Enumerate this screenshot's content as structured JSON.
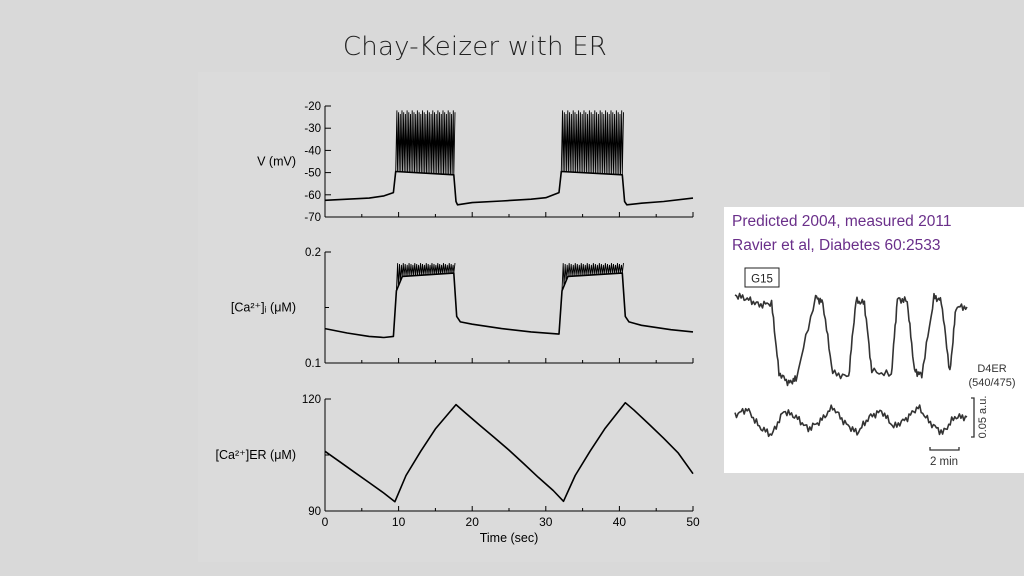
{
  "slide": {
    "title": "Chay-Keizer with ER"
  },
  "inset": {
    "caption_line1": "Predicted 2004, measured 2011",
    "caption_line2": "Ravier et al, Diabetes  60:2533",
    "label_glucose": "G15",
    "label_d4er_line1": "D4ER",
    "label_d4er_line2": "(540/475)",
    "scale_y_label": "0.05 a.u.",
    "scale_x_label": "2 min"
  },
  "chart_data": [
    {
      "type": "line",
      "id": "voltage",
      "ylabel": "V (mV)",
      "ylim": [
        -70,
        -20
      ],
      "yticks": [
        -20,
        -30,
        -40,
        -50,
        -60,
        -70
      ],
      "xlim": [
        0,
        50
      ],
      "series": [
        {
          "name": "V",
          "x": [
            0,
            3,
            6,
            8,
            9.3,
            9.6,
            17.5,
            17.8,
            18,
            20,
            24,
            28,
            30,
            31.8,
            32.1,
            40.4,
            40.7,
            41,
            43,
            46,
            50
          ],
          "y": [
            -62.5,
            -62,
            -61.5,
            -60.5,
            -59,
            -49.5,
            -51,
            -63,
            -64.5,
            -63.5,
            -62.8,
            -62,
            -61.3,
            -59,
            -49.5,
            -51,
            -63,
            -64.5,
            -63.8,
            -63,
            -61.5
          ],
          "burst_intervals": [
            [
              9.6,
              17.5
            ],
            [
              32.1,
              40.4
            ]
          ],
          "spike_peak": -22
        }
      ]
    },
    {
      "type": "line",
      "id": "calcium-cytosol",
      "ylabel": "[Ca²⁺]ᵢ (μM)",
      "ylim": [
        0.1,
        0.2
      ],
      "yticks": [
        0.2,
        0.1
      ],
      "xlim": [
        0,
        50
      ],
      "series": [
        {
          "name": "Ca_i",
          "x": [
            0,
            3,
            6,
            8,
            9.3,
            9.7,
            10.5,
            17.5,
            17.9,
            18.4,
            20,
            24,
            28,
            31.8,
            32.2,
            33,
            40.4,
            40.8,
            41.3,
            43,
            47,
            50
          ],
          "y": [
            0.131,
            0.127,
            0.124,
            0.123,
            0.124,
            0.165,
            0.178,
            0.181,
            0.142,
            0.137,
            0.135,
            0.131,
            0.128,
            0.126,
            0.165,
            0.178,
            0.181,
            0.142,
            0.137,
            0.134,
            0.13,
            0.128
          ],
          "burst_intervals": [
            [
              9.7,
              17.5
            ],
            [
              32.2,
              40.4
            ]
          ],
          "oscillation_peak": 0.19
        }
      ]
    },
    {
      "type": "line",
      "id": "calcium-er",
      "ylabel": "[Ca²⁺]ER (μM)",
      "ylim": [
        90,
        120
      ],
      "yticks": [
        120,
        90
      ],
      "xlim": [
        0,
        50
      ],
      "xticks": [
        0,
        10,
        20,
        30,
        40,
        50
      ],
      "xlabel": "Time (sec)",
      "series": [
        {
          "name": "Ca_ER",
          "x": [
            0,
            2,
            4,
            6,
            8,
            9.5,
            11,
            13,
            15,
            17.8,
            19,
            21,
            23,
            25,
            27,
            29,
            31,
            32.4,
            34,
            36,
            38,
            40.8,
            42,
            44,
            46,
            48,
            50
          ],
          "y": [
            106,
            103.2,
            100.4,
            97.6,
            94.8,
            92.5,
            99.5,
            106,
            112,
            118.5,
            116.4,
            113,
            109.7,
            106.3,
            102.7,
            99,
            95.5,
            92.6,
            99.5,
            106,
            112,
            119,
            117,
            113.3,
            109.5,
            105.5,
            100
          ]
        }
      ]
    },
    {
      "type": "line",
      "id": "measured-er",
      "series": [
        {
          "name": "G15",
          "x": [
            0,
            1,
            2,
            3,
            3.6,
            4.4,
            5,
            6.6,
            7.2,
            8,
            9.3,
            9.9,
            10.6,
            11.2,
            12.8,
            13.3,
            14.1,
            14.7,
            15.3,
            16.3,
            16.9,
            17.6,
            18.1,
            19
          ],
          "y": [
            0.98,
            0.94,
            0.88,
            0.9,
            0.2,
            0.1,
            0.14,
            0.96,
            0.9,
            0.2,
            0.16,
            0.92,
            0.9,
            0.22,
            0.18,
            0.94,
            0.92,
            0.22,
            0.18,
            0.96,
            0.92,
            0.2,
            0.86,
            0.86
          ]
        },
        {
          "name": "D4ER",
          "x": [
            0,
            1,
            2,
            3,
            4,
            5,
            6,
            7,
            8,
            9,
            10,
            11,
            12,
            13,
            14,
            15,
            16,
            17,
            18,
            19
          ],
          "y": [
            0.42,
            0.48,
            0.3,
            0.22,
            0.46,
            0.4,
            0.28,
            0.36,
            0.5,
            0.34,
            0.24,
            0.4,
            0.46,
            0.3,
            0.38,
            0.5,
            0.34,
            0.24,
            0.4,
            0.4
          ]
        }
      ]
    }
  ]
}
